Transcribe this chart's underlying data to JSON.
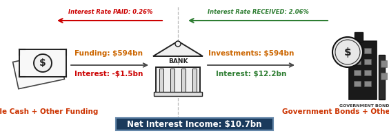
{
  "bg_color": "#ffffff",
  "top_left_label": "Interest Rate PAID: 0.26%",
  "top_left_label_color": "#cc0000",
  "top_right_label": "Interest Rate RECEIVED: 2.06%",
  "top_right_label_color": "#2e7d32",
  "left_arrow_color": "#cc0000",
  "right_arrow_color": "#2e7d32",
  "funding_label": "Funding: $594bn",
  "funding_color": "#cc6600",
  "interest_paid_label": "Interest: -$1.5bn",
  "interest_paid_color": "#cc0000",
  "investments_label": "Investments: $594bn",
  "investments_color": "#cc6600",
  "interest_received_label": "Interest: $12.2bn",
  "interest_received_color": "#2e7d32",
  "left_icon_label": "Idle Cash + Other Funding",
  "left_icon_label_color": "#cc3300",
  "right_icon_label": "Government Bonds + Other",
  "right_icon_label_color": "#cc3300",
  "govt_bonds_label": "GOVERNMENT BONDS",
  "govt_bonds_label_color": "#333333",
  "net_label": "Net Interest Income: $10.7bn",
  "net_label_color": "#ffffff",
  "net_bg_color": "#1a3a5c",
  "mid_arrow_color": "#444444",
  "dashed_line_color": "#bbbbbb",
  "figure_width": 5.64,
  "figure_height": 1.94,
  "dpi": 100
}
